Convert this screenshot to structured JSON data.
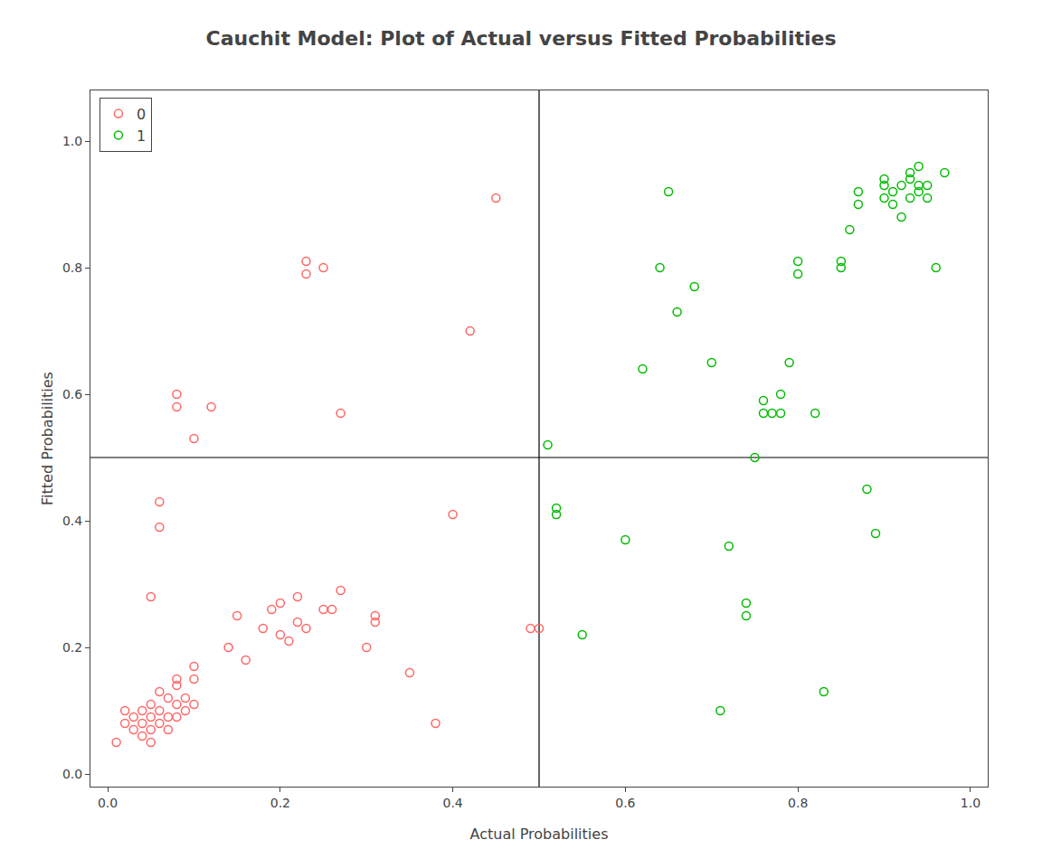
{
  "chart_data": {
    "type": "scatter",
    "title": "Cauchit Model: Plot of Actual versus Fitted Probabilities",
    "xlabel": "Actual Probabilities",
    "ylabel": "Fitted Probabilities",
    "xlim": [
      -0.02,
      1.02
    ],
    "ylim": [
      -0.02,
      1.08
    ],
    "xticks": [
      {
        "value": 0.0,
        "label": "0.0"
      },
      0.2,
      0.4,
      0.6,
      0.8,
      {
        "value": 1.0,
        "label": "1.0"
      }
    ],
    "yticks": [
      {
        "value": 0.0,
        "label": "0.0"
      },
      0.2,
      0.4,
      0.6,
      0.8,
      {
        "value": 1.0,
        "label": "1.0"
      }
    ],
    "vline": 0.5,
    "hline": 0.5,
    "grid": false,
    "legend": "upper left",
    "marker": "circle-open",
    "series": [
      {
        "name": "0",
        "color": "#FF6666",
        "x": [
          0.01,
          0.02,
          0.02,
          0.03,
          0.03,
          0.04,
          0.04,
          0.04,
          0.05,
          0.05,
          0.05,
          0.05,
          0.06,
          0.06,
          0.06,
          0.07,
          0.07,
          0.07,
          0.08,
          0.08,
          0.08,
          0.08,
          0.09,
          0.09,
          0.1,
          0.1,
          0.1,
          0.05,
          0.06,
          0.06,
          0.08,
          0.08,
          0.1,
          0.12,
          0.14,
          0.15,
          0.16,
          0.18,
          0.19,
          0.2,
          0.2,
          0.21,
          0.22,
          0.22,
          0.23,
          0.23,
          0.23,
          0.25,
          0.25,
          0.26,
          0.27,
          0.27,
          0.3,
          0.31,
          0.31,
          0.35,
          0.38,
          0.4,
          0.42,
          0.45,
          0.49,
          0.5
        ],
        "y": [
          0.05,
          0.08,
          0.1,
          0.07,
          0.09,
          0.06,
          0.08,
          0.1,
          0.05,
          0.07,
          0.09,
          0.11,
          0.08,
          0.1,
          0.13,
          0.07,
          0.09,
          0.12,
          0.09,
          0.11,
          0.14,
          0.15,
          0.1,
          0.12,
          0.11,
          0.15,
          0.17,
          0.28,
          0.39,
          0.43,
          0.58,
          0.6,
          0.53,
          0.58,
          0.2,
          0.25,
          0.18,
          0.23,
          0.26,
          0.22,
          0.27,
          0.21,
          0.24,
          0.28,
          0.23,
          0.79,
          0.81,
          0.26,
          0.8,
          0.26,
          0.29,
          0.57,
          0.2,
          0.24,
          0.25,
          0.16,
          0.08,
          0.41,
          0.7,
          0.91,
          0.23,
          0.23
        ]
      },
      {
        "name": "1",
        "color": "#00BB00",
        "x": [
          0.51,
          0.52,
          0.52,
          0.55,
          0.6,
          0.62,
          0.64,
          0.65,
          0.66,
          0.68,
          0.7,
          0.71,
          0.72,
          0.74,
          0.74,
          0.75,
          0.76,
          0.76,
          0.77,
          0.78,
          0.78,
          0.79,
          0.8,
          0.8,
          0.82,
          0.83,
          0.85,
          0.85,
          0.86,
          0.87,
          0.87,
          0.88,
          0.89,
          0.9,
          0.9,
          0.9,
          0.91,
          0.91,
          0.92,
          0.92,
          0.93,
          0.93,
          0.93,
          0.94,
          0.94,
          0.94,
          0.95,
          0.95,
          0.96,
          0.97
        ],
        "y": [
          0.52,
          0.41,
          0.42,
          0.22,
          0.37,
          0.64,
          0.8,
          0.92,
          0.73,
          0.77,
          0.65,
          0.1,
          0.36,
          0.25,
          0.27,
          0.5,
          0.57,
          0.59,
          0.57,
          0.57,
          0.6,
          0.65,
          0.79,
          0.81,
          0.57,
          0.13,
          0.8,
          0.81,
          0.86,
          0.9,
          0.92,
          0.45,
          0.38,
          0.91,
          0.93,
          0.94,
          0.9,
          0.92,
          0.88,
          0.93,
          0.91,
          0.94,
          0.95,
          0.92,
          0.93,
          0.96,
          0.91,
          0.93,
          0.8,
          0.95
        ]
      }
    ]
  }
}
